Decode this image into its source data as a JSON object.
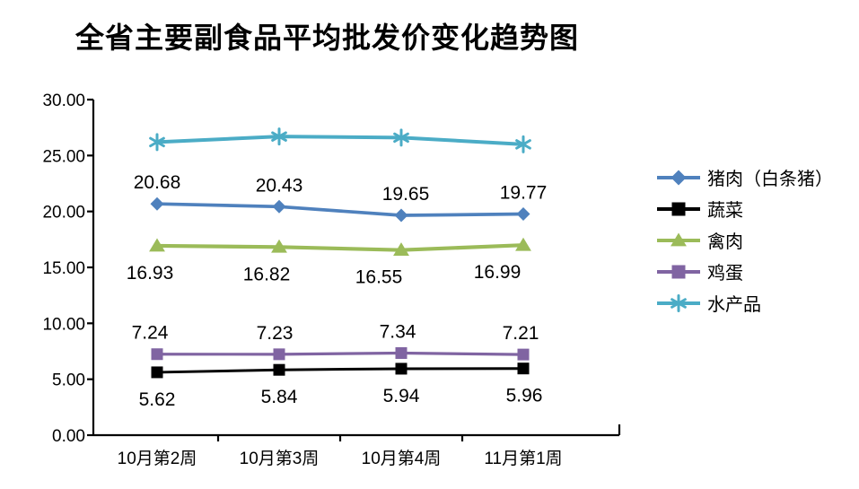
{
  "title": "全省主要副食品平均批发价变化趋势图",
  "chart_data": {
    "type": "line",
    "title": "全省主要副食品平均批发价变化趋势图",
    "categories": [
      "10月第2周",
      "10月第3周",
      "10月第4周",
      "11月第1周"
    ],
    "series": [
      {
        "name": "猪肉（白条猪）",
        "values": [
          20.68,
          20.43,
          19.65,
          19.77
        ],
        "color": "#4F81BD",
        "marker": "diamond",
        "labels": true,
        "label_position": "above"
      },
      {
        "name": "蔬菜",
        "values": [
          5.62,
          5.84,
          5.94,
          5.96
        ],
        "color": "#000000",
        "marker": "square",
        "labels": true,
        "label_position": "below"
      },
      {
        "name": "禽肉",
        "values": [
          16.93,
          16.82,
          16.55,
          16.99
        ],
        "color": "#9BBB59",
        "marker": "triangle",
        "labels": true,
        "label_position": "below"
      },
      {
        "name": "鸡蛋",
        "values": [
          7.24,
          7.23,
          7.34,
          7.21
        ],
        "color": "#8064A2",
        "marker": "square",
        "labels": true,
        "label_position": "above"
      },
      {
        "name": "水产品",
        "values": [
          26.2,
          26.7,
          26.6,
          26.0
        ],
        "color": "#4BACC6",
        "marker": "star",
        "labels": false,
        "label_position": "none"
      }
    ],
    "y_axis": {
      "min": 0,
      "max": 30,
      "step": 5,
      "tick_labels": [
        "0.00",
        "5.00",
        "10.00",
        "15.00",
        "20.00",
        "25.00",
        "30.00"
      ]
    },
    "x_axis": {
      "tick_labels": [
        "10月第2周",
        "10月第3周",
        "10月第4周",
        "11月第1周"
      ]
    },
    "grid": false,
    "legend_position": "right",
    "label_format": "0.00"
  }
}
